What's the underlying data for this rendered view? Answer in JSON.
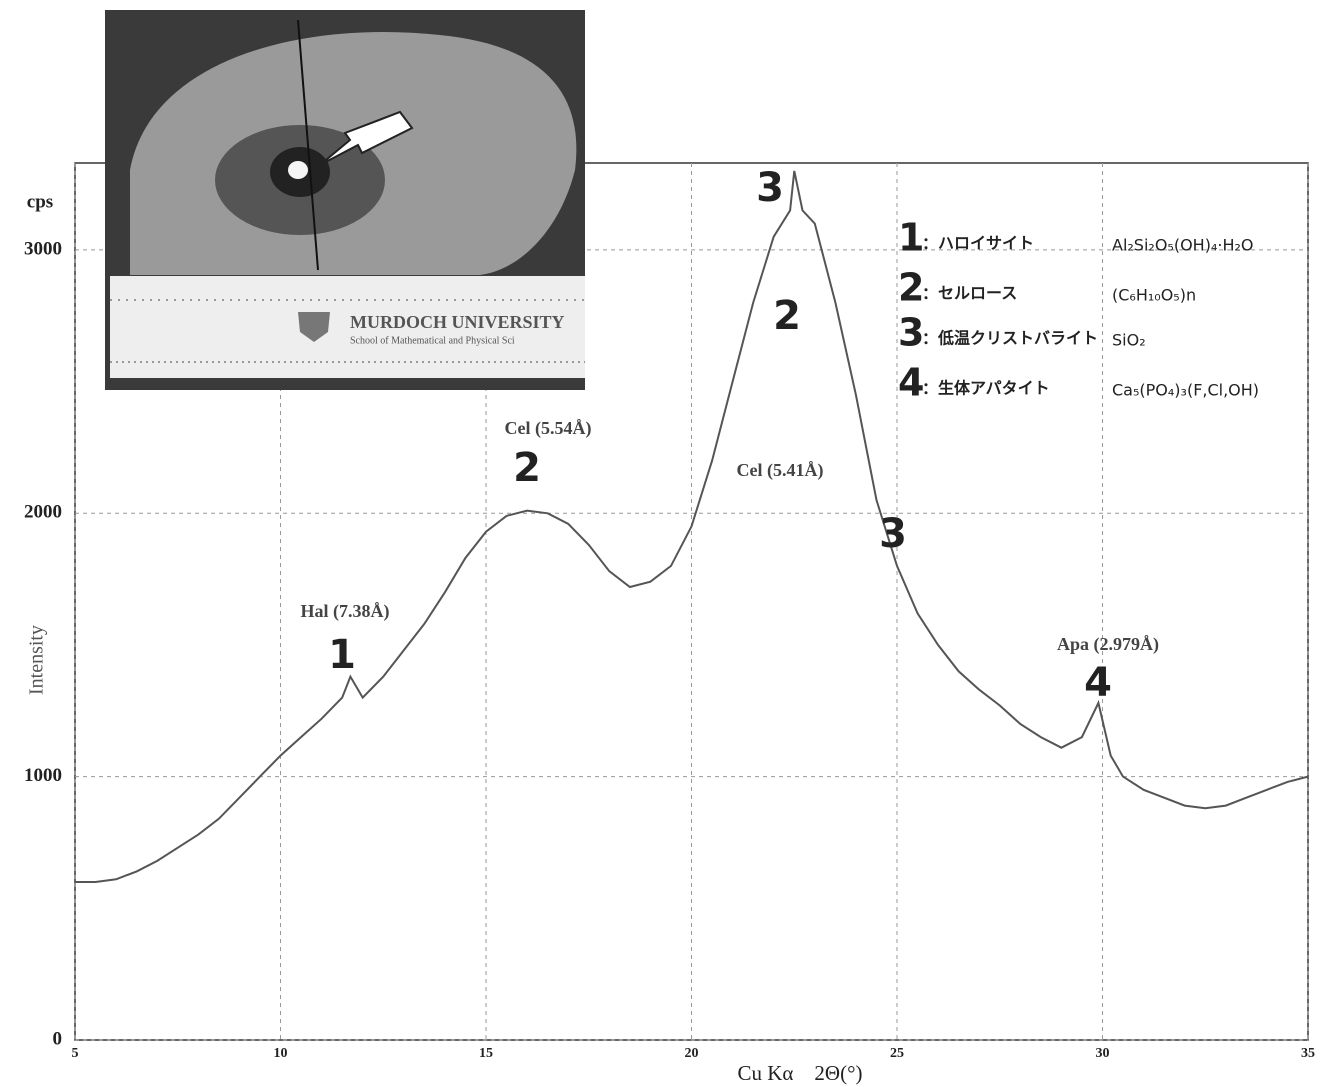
{
  "chart_data": {
    "type": "line",
    "y_unit_label": "cps",
    "ylabel": "Intensity",
    "xlabel": "Cu Kα　2Θ(°)",
    "xlim": [
      5,
      35
    ],
    "xticks": [
      5,
      10,
      15,
      20,
      25,
      30,
      35
    ],
    "ylim": [
      0,
      3330
    ],
    "yticks": [
      0,
      1000,
      2000,
      3000
    ],
    "grid": true,
    "x": [
      5,
      5.5,
      6,
      6.5,
      7,
      7.5,
      8,
      8.5,
      9,
      9.5,
      10,
      10.5,
      11,
      11.5,
      11.7,
      12,
      12.5,
      13,
      13.5,
      14,
      14.5,
      15,
      15.5,
      16,
      16.5,
      17,
      17.5,
      18,
      18.5,
      19,
      19.5,
      20,
      20.5,
      21,
      21.5,
      22,
      22.4,
      22.5,
      22.7,
      23,
      23.5,
      24,
      24.5,
      25,
      25.5,
      26,
      26.5,
      27,
      27.5,
      28,
      28.5,
      29,
      29.5,
      29.9,
      30.2,
      30.5,
      31,
      31.5,
      32,
      32.5,
      33,
      33.5,
      34,
      34.5,
      35
    ],
    "values": [
      600,
      600,
      610,
      640,
      680,
      730,
      780,
      840,
      920,
      1000,
      1080,
      1150,
      1220,
      1300,
      1380,
      1300,
      1380,
      1480,
      1580,
      1700,
      1830,
      1930,
      1990,
      2010,
      2000,
      1960,
      1880,
      1780,
      1720,
      1740,
      1800,
      1950,
      2200,
      2500,
      2800,
      3050,
      3150,
      3300,
      3150,
      3100,
      2800,
      2450,
      2050,
      1800,
      1620,
      1500,
      1400,
      1330,
      1270,
      1200,
      1150,
      1110,
      1150,
      1280,
      1080,
      1000,
      950,
      920,
      890,
      880,
      890,
      920,
      950,
      980,
      1000
    ],
    "color": "#555555",
    "annotations": [
      "Hal (7.38Å)",
      "1",
      "Cel (5.54Å)",
      "2",
      "Cel (5.41Å)",
      "2",
      "3",
      "3",
      "Apa (2.979Å)",
      "4"
    ],
    "legend_entries": [
      {
        "number": "1",
        "name": "：ハロイサイト",
        "formula": "Al₂Si₂O₅(OH)₄·H₂O"
      },
      {
        "number": "2",
        "name": "：セルロース",
        "formula": "(C₆H₁₀O₅)n"
      },
      {
        "number": "3",
        "name": "：低温クリストバライト",
        "formula": "SiO₂"
      },
      {
        "number": "4",
        "name": "：生体アパタイト",
        "formula": "Ca₅(PO₄)₃(F,Cl,OH)"
      }
    ],
    "inset_texts": [
      "MURDOCH UNIVERSITY",
      "School of Mathematical and Physical Sci"
    ]
  }
}
